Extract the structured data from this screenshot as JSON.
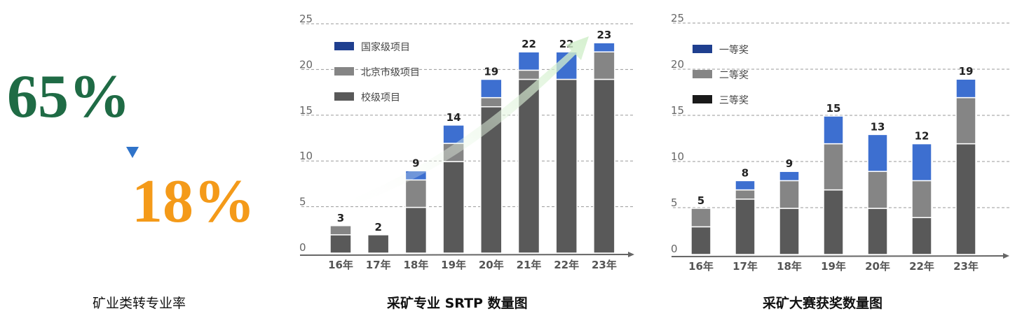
{
  "left_panel": {
    "stat_before": "65%",
    "stat_after": "18%",
    "caption": "矿业类转专业率"
  },
  "colors": {
    "dark_green": "#1f6b45",
    "orange": "#f49a19",
    "blue_arrow": "#2f73c9",
    "national": "#1f3f8f",
    "blue_bar_top": "#3d6fd0",
    "gray_mid": "#858585",
    "gray_dark": "#595959",
    "black": "#1a1a1a"
  },
  "chart_data": [
    {
      "type": "bar",
      "stacked": true,
      "title": "采矿专业 SRTP 数量图",
      "categories": [
        "16年",
        "17年",
        "18年",
        "19年",
        "20年",
        "21年",
        "22年",
        "23年"
      ],
      "series": [
        {
          "name": "校级项目",
          "values": [
            2,
            2,
            5,
            10,
            16,
            19,
            19,
            19
          ]
        },
        {
          "name": "北京市级项目",
          "values": [
            1,
            0,
            3,
            2,
            1,
            1,
            0,
            3
          ]
        },
        {
          "name": "国家级项目",
          "values": [
            0,
            0,
            1,
            2,
            2,
            2,
            3,
            1
          ]
        }
      ],
      "totals": [
        3,
        2,
        9,
        14,
        19,
        22,
        22,
        23
      ],
      "yticks": [
        0,
        5,
        10,
        15,
        20,
        25
      ],
      "ylim": [
        0,
        25
      ],
      "legend_position": "top-left",
      "trend_arrow": true
    },
    {
      "type": "bar",
      "stacked": true,
      "title": "采矿大赛获奖数量图",
      "categories": [
        "16年",
        "17年",
        "18年",
        "19年",
        "20年",
        "22年",
        "23年"
      ],
      "series": [
        {
          "name": "三等奖",
          "values": [
            3,
            6,
            5,
            7,
            5,
            4,
            12
          ]
        },
        {
          "name": "二等奖",
          "values": [
            2,
            1,
            3,
            5,
            4,
            4,
            5
          ]
        },
        {
          "name": "一等奖",
          "values": [
            0,
            1,
            1,
            3,
            4,
            4,
            2
          ]
        }
      ],
      "totals": [
        5,
        8,
        9,
        15,
        13,
        12,
        19
      ],
      "yticks": [
        0,
        5,
        10,
        15,
        20,
        25
      ],
      "ylim": [
        0,
        25
      ],
      "legend_position": "top-left"
    }
  ]
}
